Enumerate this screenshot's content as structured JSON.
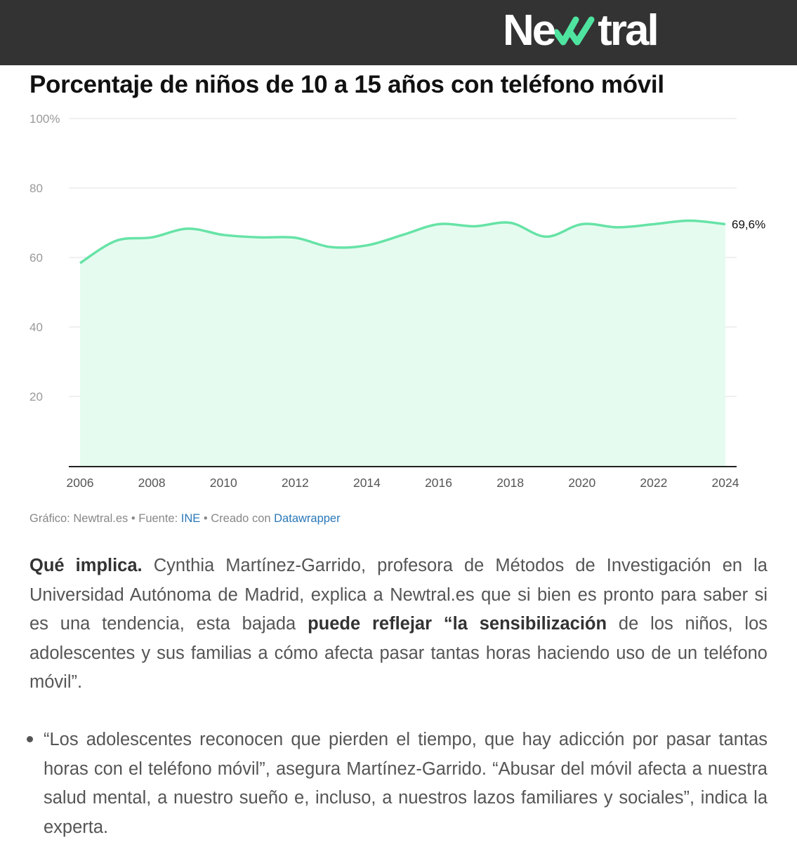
{
  "header": {
    "logo_text_before": "Ne",
    "logo_text_after": "tral",
    "logo_mark": "double-check-icon",
    "bar_color": "#333333",
    "accent_color": "#4fe3a0"
  },
  "title": "Porcentaje de niños de 10 a 15 años con teléfono móvil",
  "chart_data": {
    "type": "area",
    "x": [
      2006,
      2007,
      2008,
      2009,
      2010,
      2011,
      2012,
      2013,
      2014,
      2015,
      2016,
      2017,
      2018,
      2019,
      2020,
      2021,
      2022,
      2023,
      2024
    ],
    "series": [
      {
        "values": [
          58.4,
          64.8,
          65.8,
          68.3,
          66.5,
          65.8,
          65.7,
          63.0,
          63.5,
          66.5,
          69.6,
          69.0,
          70.0,
          66.0,
          69.6,
          68.7,
          69.6,
          70.6,
          69.6
        ]
      }
    ],
    "xticks": [
      "2006",
      "2008",
      "2010",
      "2012",
      "2014",
      "2016",
      "2018",
      "2020",
      "2022",
      "2024"
    ],
    "ytick_values": [
      20,
      40,
      60,
      80,
      100
    ],
    "ytick_labels": [
      "20",
      "40",
      "60",
      "80",
      "100%"
    ],
    "ylim": [
      0,
      100
    ],
    "xlim": [
      2006,
      2024
    ],
    "grid": true,
    "end_label": "69,6%",
    "line_color": "#66e3a6",
    "fill_color": "#e6fbf0"
  },
  "source": {
    "prefix": "Gráfico: Newtral.es • Fuente: ",
    "source_link": "INE",
    "middle": " • Creado con ",
    "tool_link": "Datawrapper"
  },
  "paragraph": {
    "lead": "Qué implica.",
    "text1": " Cynthia Martínez-Garrido, profesora de Métodos de Investigación en la Universidad Autónoma de Madrid, explica a Newtral.es que si bien es pronto para saber si es una tendencia, esta bajada ",
    "bold": "puede reflejar “la sensibilización",
    "text2": " de los niños, los adolescentes y sus familias a cómo afecta pasar tantas horas haciendo uso de un teléfono móvil”."
  },
  "bullet": "“Los adolescentes reconocen que pierden el tiempo, que hay adicción por pasar tantas horas con el teléfono móvil”, asegura Martínez-Garrido. “Abusar del móvil afecta a nuestra salud mental, a nuestro sueño e, incluso, a nuestros lazos familiares y sociales”, indica la experta."
}
